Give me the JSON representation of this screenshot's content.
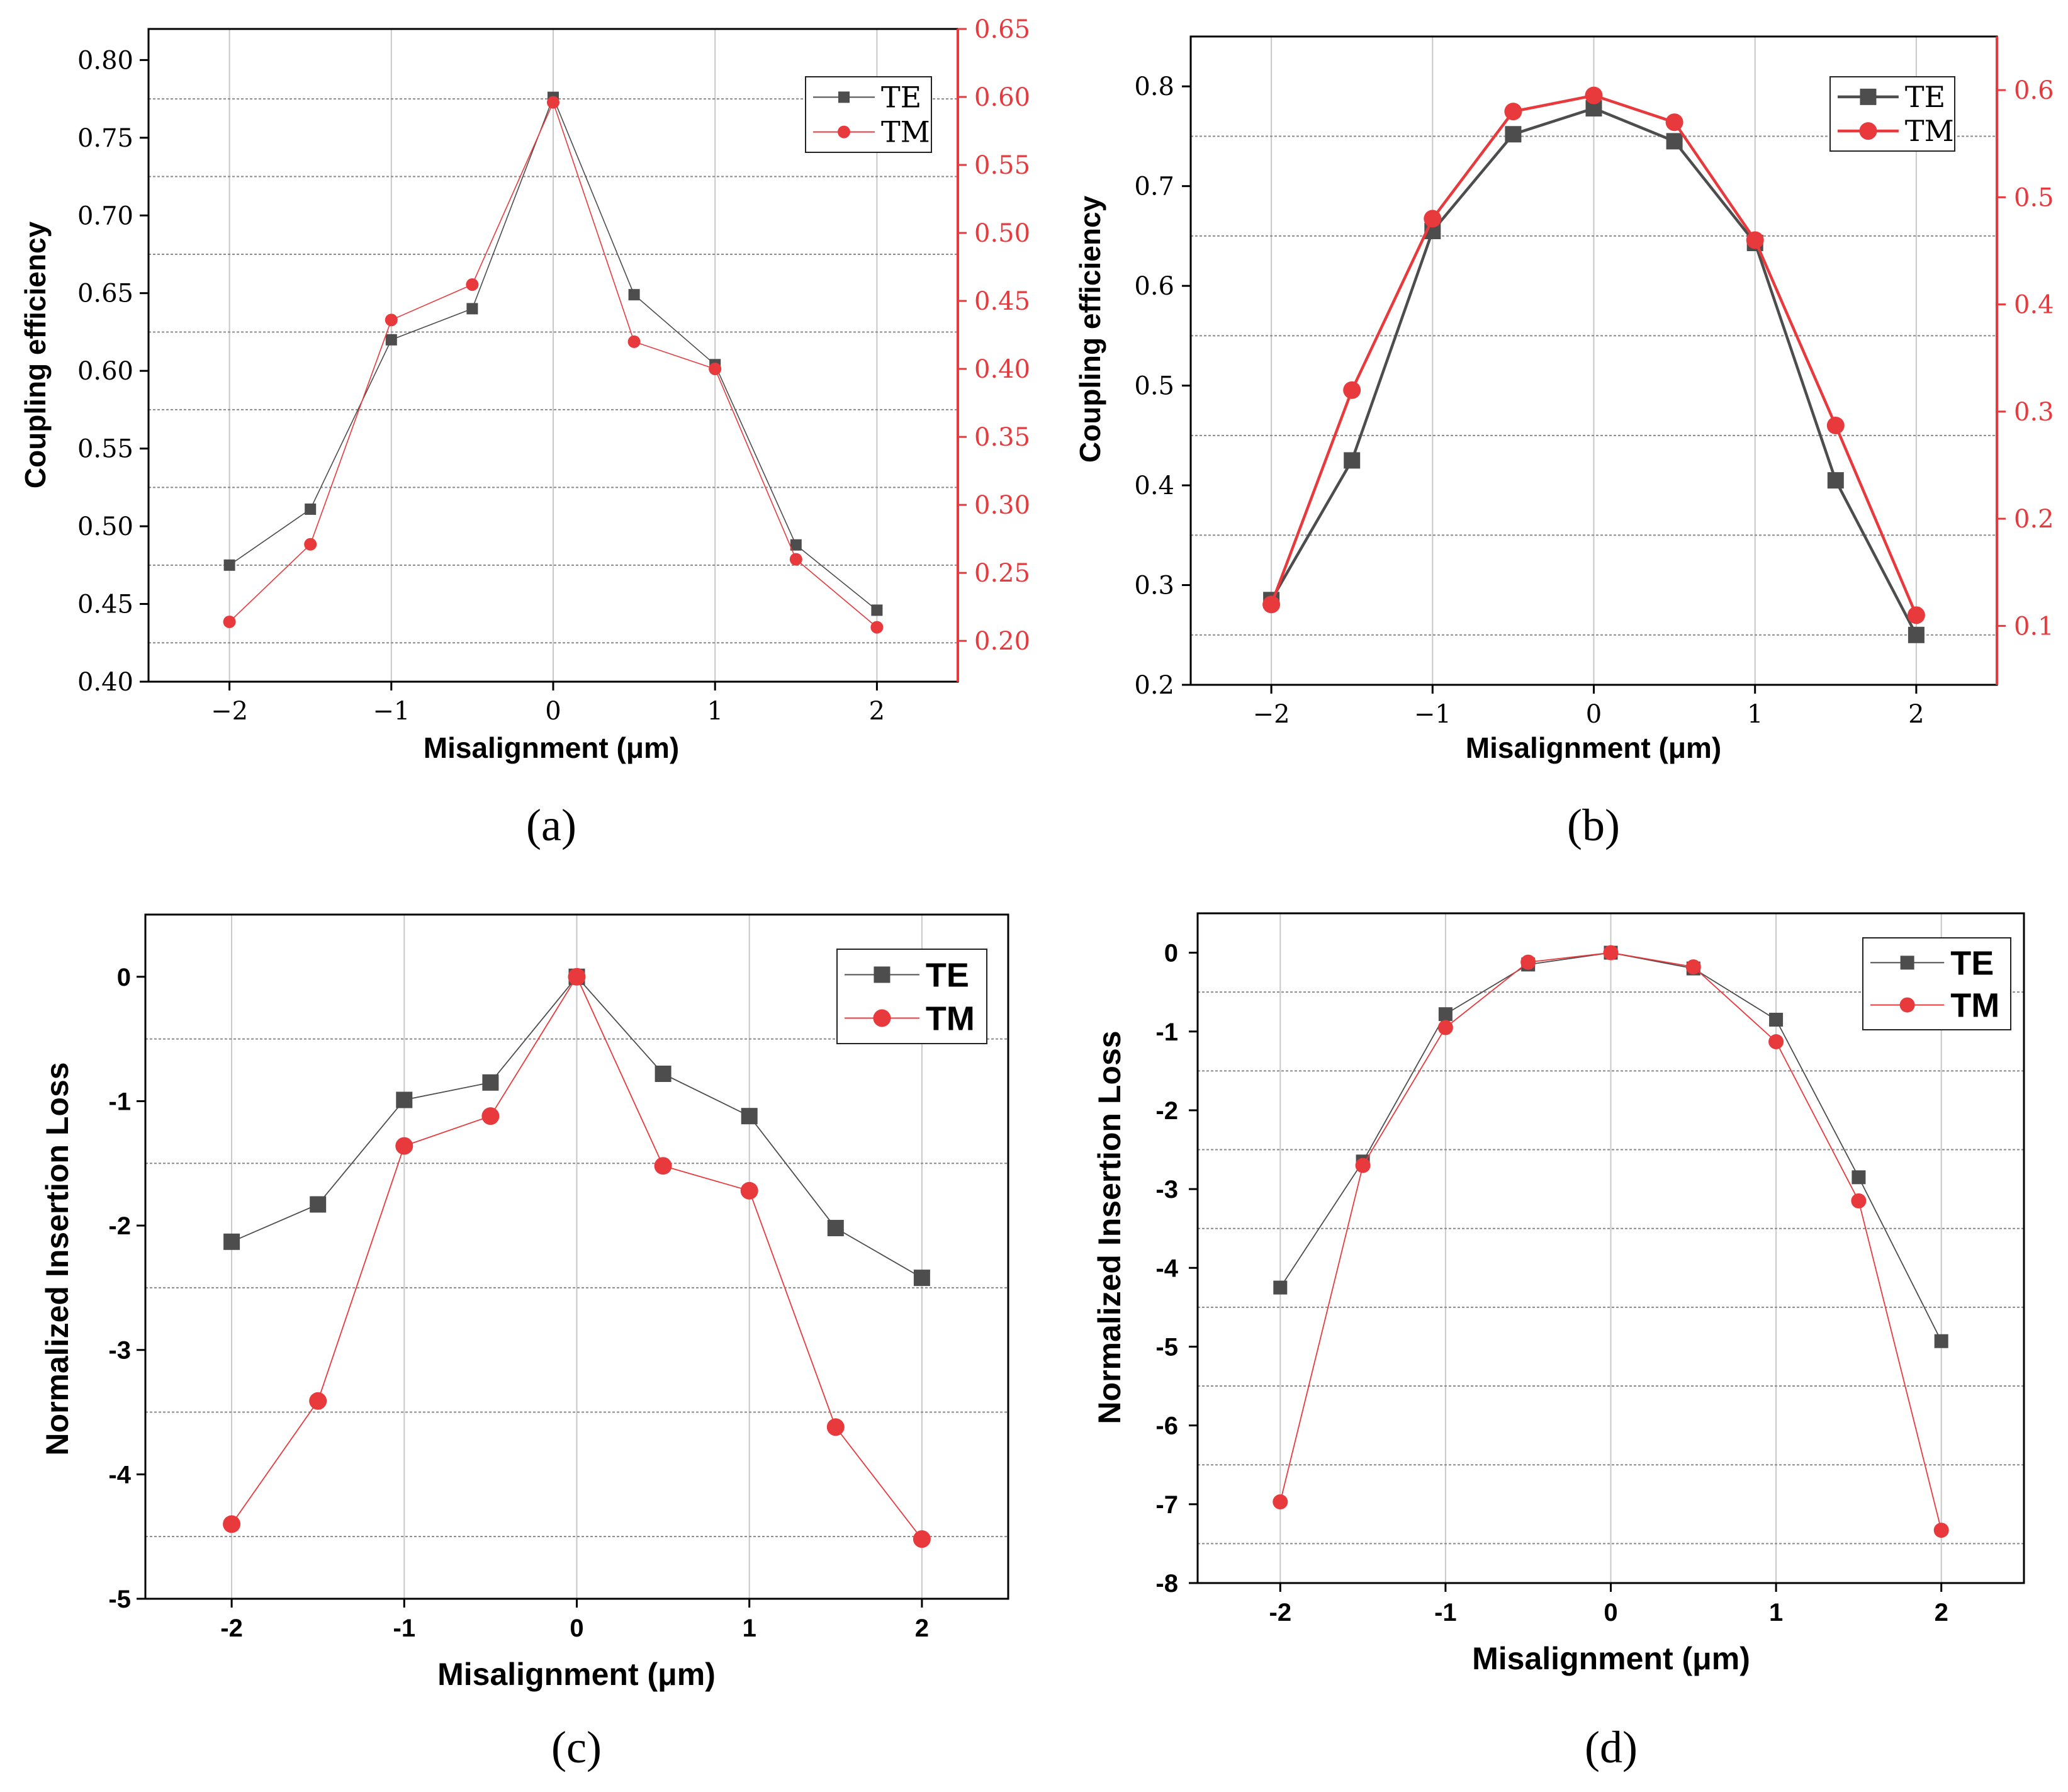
{
  "chart_data": [
    {
      "id": "a",
      "type": "line",
      "panel_label": "(a)",
      "xlabel": "Misalignment (μm)",
      "ylabel": "Coupling efficiency",
      "x": [
        -2,
        -1.5,
        -1,
        -0.5,
        0,
        0.5,
        1,
        1.5,
        2
      ],
      "xlim": [
        -2.5,
        2.5
      ],
      "x_ticks": [
        -2,
        -1,
        0,
        1,
        2
      ],
      "x_tick_labels": [
        "−2",
        "−1",
        "0",
        "1",
        "2"
      ],
      "ylim": [
        0.4,
        0.82
      ],
      "y_ticks": [
        0.4,
        0.45,
        0.5,
        0.55,
        0.6,
        0.65,
        0.7,
        0.75,
        0.8
      ],
      "y_tick_labels": [
        "0.40",
        "0.45",
        "0.50",
        "0.55",
        "0.60",
        "0.65",
        "0.70",
        "0.75",
        "0.80"
      ],
      "y2lim": [
        0.17,
        0.65
      ],
      "y2_ticks": [
        0.2,
        0.25,
        0.3,
        0.35,
        0.4,
        0.45,
        0.5,
        0.55,
        0.6,
        0.65
      ],
      "y2_tick_labels": [
        "0.20",
        "0.25",
        "0.30",
        "0.35",
        "0.40",
        "0.45",
        "0.50",
        "0.55",
        "0.60",
        "0.65"
      ],
      "legend": "top-right",
      "series": [
        {
          "name": "TE",
          "axis": "left",
          "marker": "square",
          "color": "#4d4d4d",
          "values": [
            0.475,
            0.511,
            0.62,
            0.64,
            0.776,
            0.649,
            0.604,
            0.488,
            0.446
          ]
        },
        {
          "name": "TM",
          "axis": "right",
          "marker": "circle",
          "color": "#e8393d",
          "values": [
            0.214,
            0.271,
            0.436,
            0.462,
            0.596,
            0.42,
            0.4,
            0.26,
            0.21
          ]
        }
      ]
    },
    {
      "id": "b",
      "type": "line",
      "panel_label": "(b)",
      "xlabel": "Misalignment (μm)",
      "ylabel": "Coupling efficiency",
      "x": [
        -2,
        -1.5,
        -1,
        -0.5,
        0,
        0.5,
        1,
        1.5,
        2
      ],
      "xlim": [
        -2.5,
        2.5
      ],
      "x_ticks": [
        -2,
        -1,
        0,
        1,
        2
      ],
      "x_tick_labels": [
        "−2",
        "−1",
        "0",
        "1",
        "2"
      ],
      "ylim": [
        0.2,
        0.85
      ],
      "y_ticks": [
        0.2,
        0.3,
        0.4,
        0.5,
        0.6,
        0.7,
        0.8
      ],
      "y_tick_labels": [
        "0.2",
        "0.3",
        "0.4",
        "0.5",
        "0.6",
        "0.7",
        "0.8"
      ],
      "y2lim": [
        0.045,
        0.65
      ],
      "y2_ticks": [
        0.1,
        0.2,
        0.3,
        0.4,
        0.5,
        0.6
      ],
      "y2_tick_labels": [
        "0.1",
        "0.2",
        "0.3",
        "0.4",
        "0.5",
        "0.6"
      ],
      "legend": "top-right",
      "series": [
        {
          "name": "TE",
          "axis": "left",
          "marker": "square",
          "color": "#4d4d4d",
          "values": [
            0.285,
            0.425,
            0.655,
            0.752,
            0.778,
            0.745,
            0.643,
            0.405,
            0.25
          ]
        },
        {
          "name": "TM",
          "axis": "right",
          "marker": "circle",
          "color": "#e8393d",
          "values": [
            0.12,
            0.32,
            0.48,
            0.58,
            0.595,
            0.57,
            0.46,
            0.287,
            0.11
          ]
        }
      ]
    },
    {
      "id": "c",
      "type": "line",
      "panel_label": "(c)",
      "xlabel": "Misalignment (μm)",
      "ylabel": "Normalized Insertion Loss",
      "x": [
        -2,
        -1.5,
        -1,
        -0.5,
        0,
        0.5,
        1,
        1.5,
        2
      ],
      "xlim": [
        -2.5,
        2.5
      ],
      "x_ticks": [
        -2,
        -1,
        0,
        1,
        2
      ],
      "x_tick_labels": [
        "-2",
        "-1",
        "0",
        "1",
        "2"
      ],
      "ylim": [
        -5,
        0.5
      ],
      "y_ticks": [
        -5,
        -4,
        -3,
        -2,
        -1,
        0
      ],
      "y_tick_labels": [
        "-5",
        "-4",
        "-3",
        "-2",
        "-1",
        "0"
      ],
      "legend": "top-right",
      "series": [
        {
          "name": "TE",
          "marker": "square",
          "color": "#4d4d4d",
          "values": [
            -2.13,
            -1.83,
            -0.99,
            -0.85,
            0,
            -0.78,
            -1.12,
            -2.02,
            -2.42
          ]
        },
        {
          "name": "TM",
          "marker": "circle",
          "color": "#e8393d",
          "values": [
            -4.4,
            -3.41,
            -1.36,
            -1.12,
            0,
            -1.52,
            -1.72,
            -3.62,
            -4.52
          ]
        }
      ]
    },
    {
      "id": "d",
      "type": "line",
      "panel_label": "(d)",
      "xlabel": "Misalignment (μm)",
      "ylabel": "Normalized Insertion Loss",
      "x": [
        -2,
        -1.5,
        -1,
        -0.5,
        0,
        0.5,
        1,
        1.5,
        2
      ],
      "xlim": [
        -2.5,
        2.5
      ],
      "x_ticks": [
        -2,
        -1,
        0,
        1,
        2
      ],
      "x_tick_labels": [
        "-2",
        "-1",
        "0",
        "1",
        "2"
      ],
      "ylim": [
        -8,
        0.5
      ],
      "y_ticks": [
        -8,
        -7,
        -6,
        -5,
        -4,
        -3,
        -2,
        -1,
        0
      ],
      "y_tick_labels": [
        "-8",
        "-7",
        "-6",
        "-5",
        "-4",
        "-3",
        "-2",
        "-1",
        "0"
      ],
      "legend": "top-right",
      "series": [
        {
          "name": "TE",
          "marker": "square",
          "color": "#4d4d4d",
          "values": [
            -4.25,
            -2.65,
            -0.78,
            -0.15,
            0,
            -0.2,
            -0.85,
            -2.85,
            -4.93
          ]
        },
        {
          "name": "TM",
          "marker": "circle",
          "color": "#e8393d",
          "values": [
            -6.97,
            -2.7,
            -0.95,
            -0.12,
            0,
            -0.18,
            -1.13,
            -3.15,
            -7.33
          ]
        }
      ]
    }
  ]
}
